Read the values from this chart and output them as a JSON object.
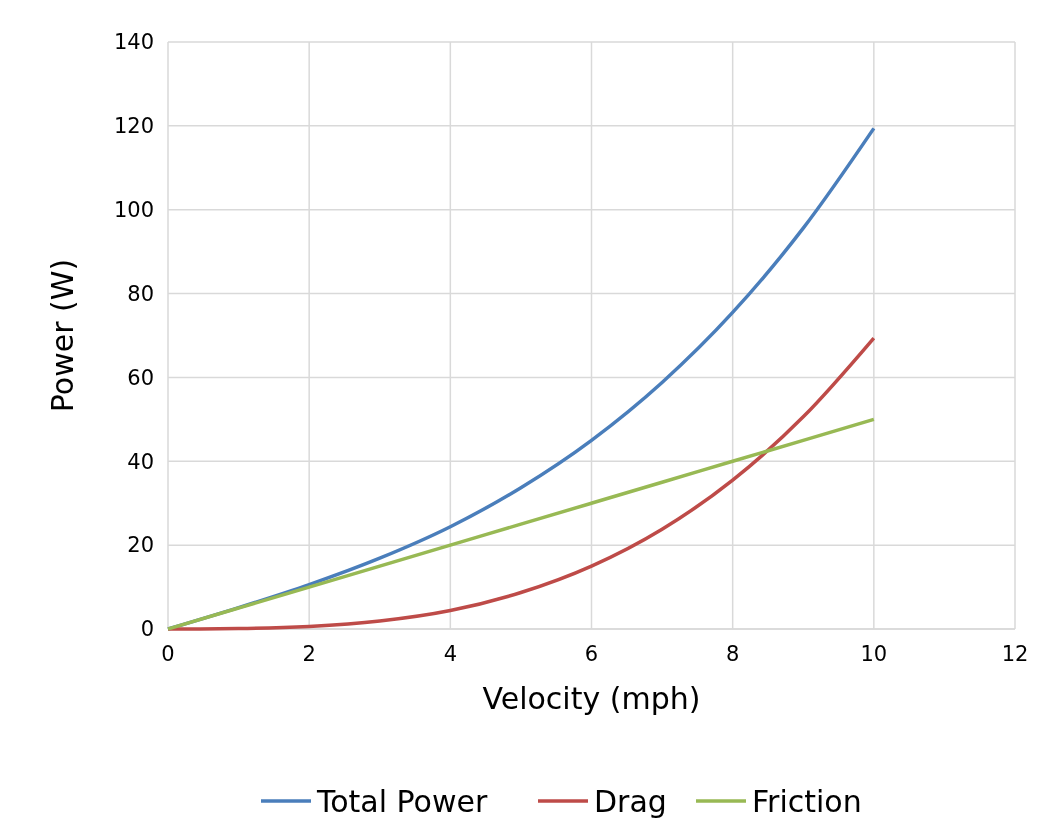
{
  "chart_data": {
    "type": "line",
    "xlabel": "Velocity (mph)",
    "ylabel": "Power (W)",
    "x": [
      0,
      1,
      2,
      3,
      4,
      5,
      6,
      7,
      8,
      9,
      10
    ],
    "series": [
      {
        "name": "Total Power",
        "color": "#4a7ebb",
        "values": [
          0,
          5.1,
          10.6,
          16.9,
          24.4,
          33.7,
          45,
          58.8,
          75.5,
          95.6,
          119.4
        ]
      },
      {
        "name": "Drag",
        "color": "#be4b48",
        "values": [
          0,
          0.1,
          0.6,
          1.9,
          4.4,
          8.7,
          15,
          23.8,
          35.5,
          50.6,
          69.4
        ]
      },
      {
        "name": "Friction",
        "color": "#98b954",
        "values": [
          0,
          5,
          10,
          15,
          20,
          25,
          30,
          35,
          40,
          45,
          50
        ]
      }
    ],
    "xlim": [
      0,
      12
    ],
    "xticks": [
      0,
      2,
      4,
      6,
      8,
      10,
      12
    ],
    "ylim": [
      0,
      140
    ],
    "yticks": [
      0,
      20,
      40,
      60,
      80,
      100,
      120,
      140
    ],
    "grid": true,
    "legend": "bottom",
    "marker": "none",
    "line_style": "solid"
  }
}
